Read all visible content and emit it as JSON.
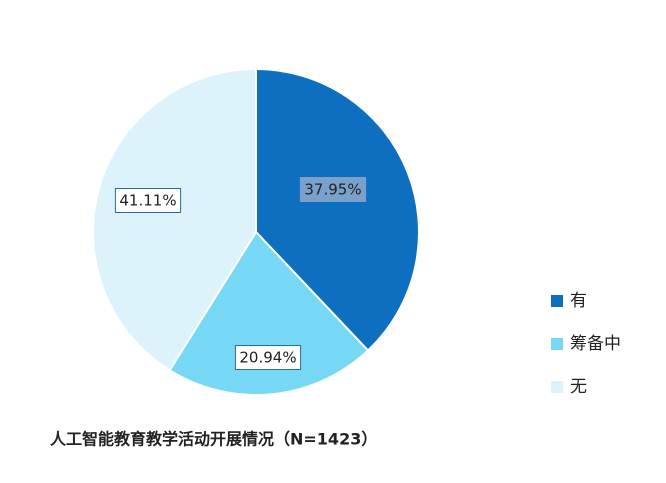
{
  "chart_data": {
    "type": "pie",
    "title": "人工智能教育教学活动开展情况（N=1423）",
    "categories": [
      "有",
      "筹备中",
      "无"
    ],
    "values": [
      37.95,
      20.94,
      41.11
    ],
    "value_labels": [
      "37.95%",
      "20.94%",
      "41.11%"
    ],
    "colors": [
      "#0e6fc1",
      "#77d8f6",
      "#dcf3fb"
    ]
  }
}
